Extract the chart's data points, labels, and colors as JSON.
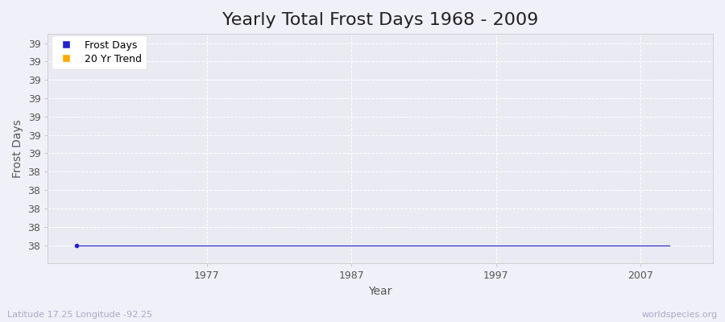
{
  "title": "Yearly Total Frost Days 1968 - 2009",
  "xlabel": "Year",
  "ylabel": "Frost Days",
  "years": [
    1968,
    1969,
    1970,
    1971,
    1972,
    1973,
    1974,
    1975,
    1976,
    1977,
    1978,
    1979,
    1980,
    1981,
    1982,
    1983,
    1984,
    1985,
    1986,
    1987,
    1988,
    1989,
    1990,
    1991,
    1992,
    1993,
    1994,
    1995,
    1996,
    1997,
    1998,
    1999,
    2000,
    2001,
    2002,
    2003,
    2004,
    2005,
    2006,
    2007,
    2008,
    2009
  ],
  "frost_days": [
    38,
    38,
    38,
    38,
    38,
    38,
    38,
    38,
    38,
    38,
    38,
    38,
    38,
    38,
    38,
    38,
    38,
    38,
    38,
    38,
    38,
    38,
    38,
    38,
    38,
    38,
    38,
    38,
    38,
    38,
    38,
    38,
    38,
    38,
    38,
    38,
    38,
    38,
    38,
    38,
    38,
    38
  ],
  "ylim_min": 37.9,
  "ylim_max": 39.15,
  "xlim_min": 1966.0,
  "xlim_max": 2012.0,
  "xticks": [
    1977,
    1987,
    1997,
    2007
  ],
  "ytick_positions": [
    38.0,
    38.1,
    38.2,
    38.3,
    38.4,
    38.5,
    38.6,
    38.7,
    38.8,
    38.9,
    39.0,
    39.1
  ],
  "ytick_labels": [
    "38",
    "38",
    "38",
    "38",
    "38",
    "39",
    "39",
    "39",
    "39",
    "39",
    "39",
    "39"
  ],
  "fig_bg_color": "#f0f0f8",
  "plot_bg_color": "#eaeaf2",
  "grid_color": "#ffffff",
  "grid_linestyle": "--",
  "line_color": "#2222cc",
  "trend_color": "#ffaa00",
  "marker_color": "#2222cc",
  "title_fontsize": 16,
  "title_color": "#222222",
  "axis_label_fontsize": 10,
  "axis_label_color": "#555555",
  "tick_fontsize": 9,
  "tick_color": "#555555",
  "spine_color": "#cccccc",
  "footer_left": "Latitude 17.25 Longitude -92.25",
  "footer_right": "worldspecies.org",
  "footer_color": "#aaaacc",
  "footer_fontsize": 8,
  "legend_labels": [
    "Frost Days",
    "20 Yr Trend"
  ],
  "legend_fontsize": 9
}
